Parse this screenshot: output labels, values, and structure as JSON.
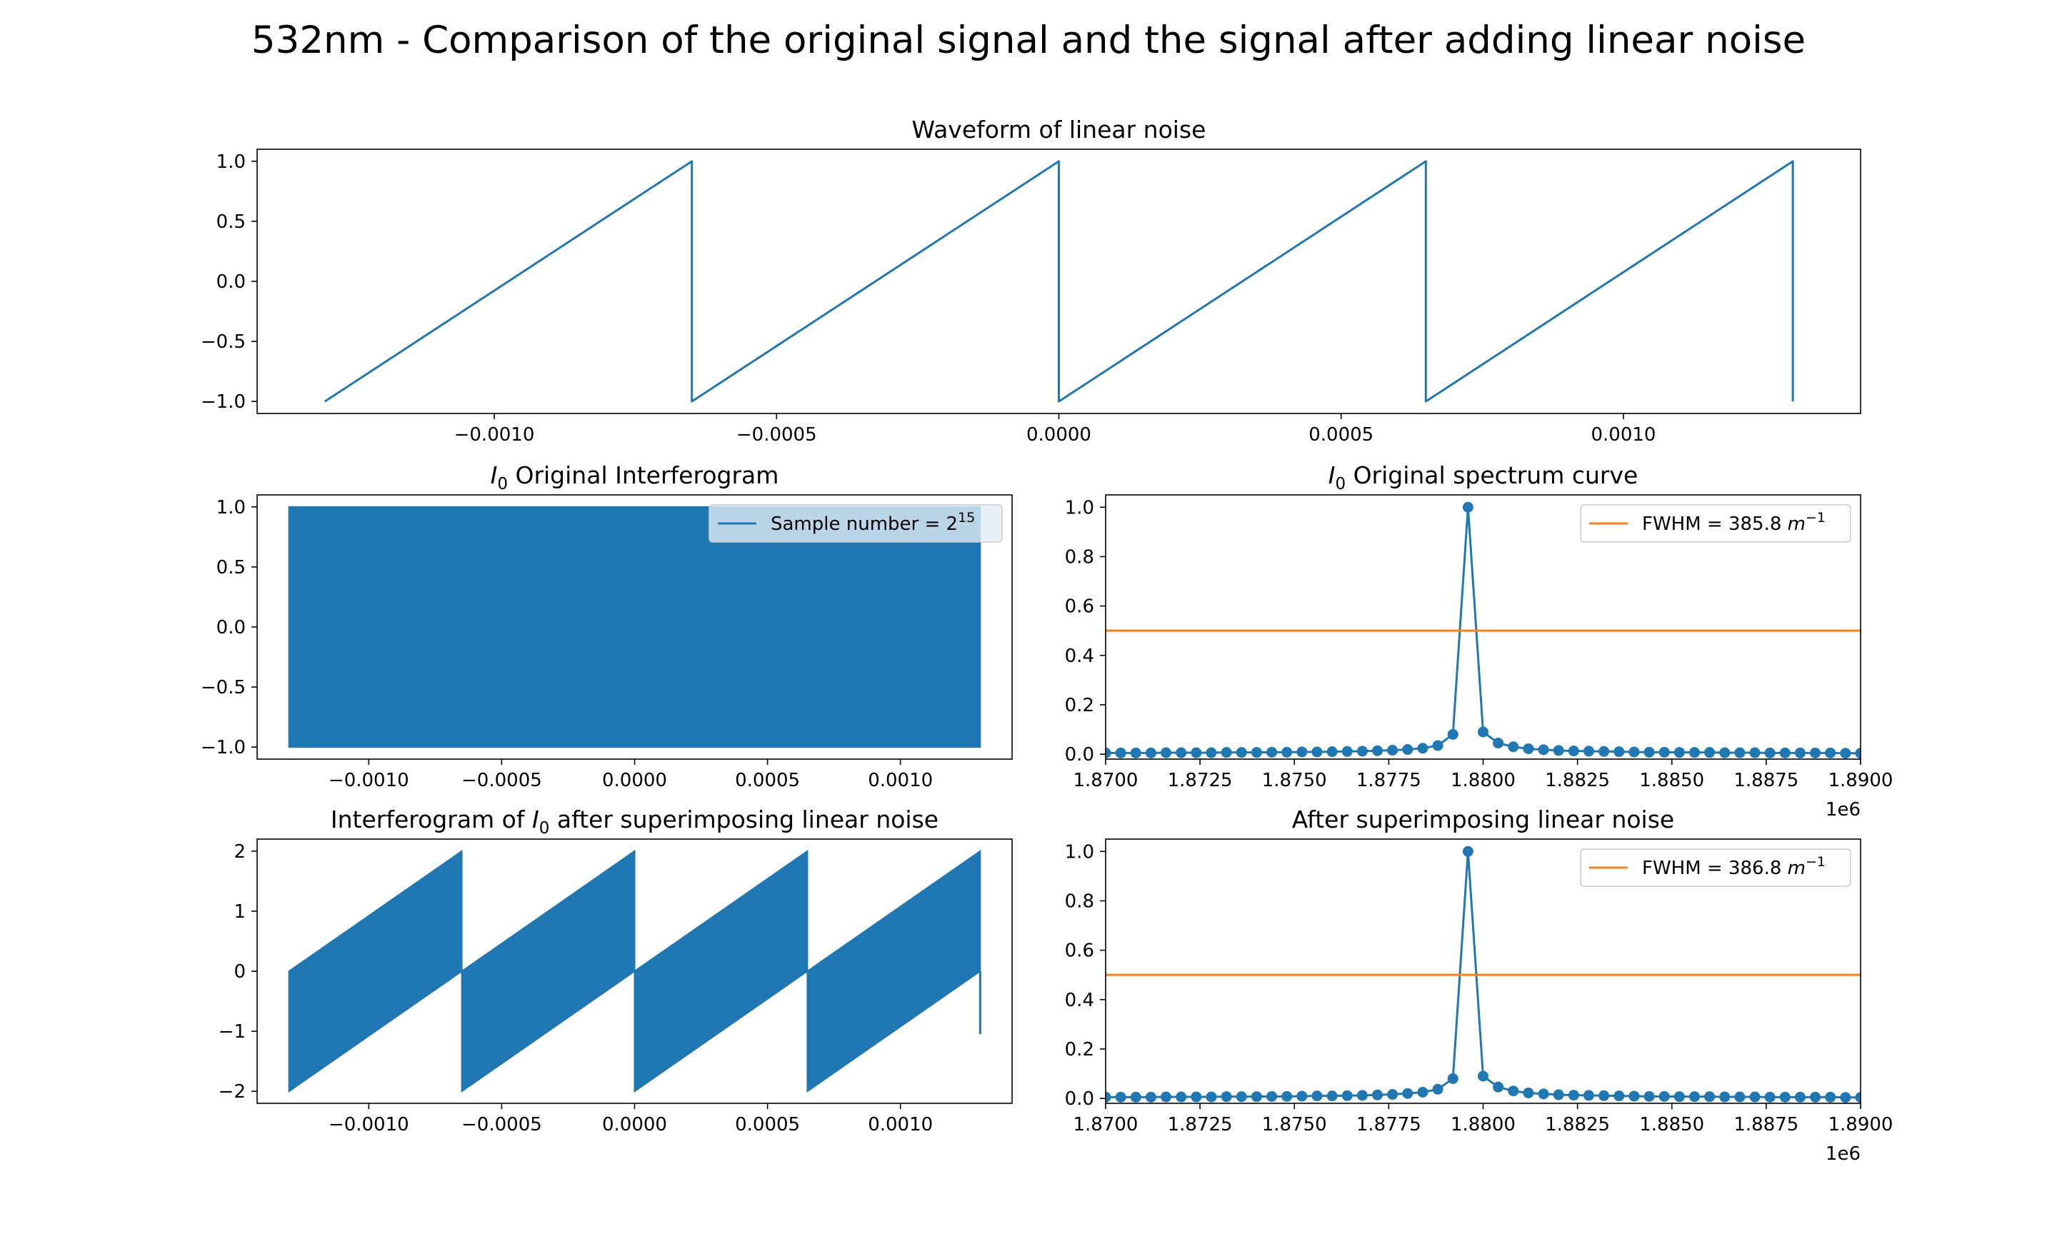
{
  "figure": {
    "suptitle": "532nm - Comparison of the original signal and the signal after adding linear noise"
  },
  "chart_data": [
    {
      "id": "noise",
      "type": "line",
      "title": "Waveform of linear noise",
      "xlabel": "",
      "ylabel": "",
      "xlim": [
        -0.00142,
        0.00142
      ],
      "ylim": [
        -1.1,
        1.1
      ],
      "xticks": [
        -0.001,
        -0.0005,
        0.0,
        0.0005,
        0.001
      ],
      "xtick_labels": [
        "−0.0010",
        "−0.0005",
        "0.0000",
        "0.0005",
        "0.0010"
      ],
      "yticks": [
        1.0,
        0.5,
        0.0,
        -0.5,
        -1.0
      ],
      "ytick_labels": [
        "1.0",
        "0.5",
        "0.0",
        "−0.5",
        "−1.0"
      ],
      "series": [
        {
          "color": "#1f77b4",
          "x": [
            -0.0013,
            -0.00065,
            -0.00065,
            0.0,
            0.0,
            0.00065,
            0.00065,
            0.0013,
            0.0013
          ],
          "y": [
            -1.0,
            1.0,
            -1.0,
            1.0,
            -1.0,
            1.0,
            -1.0,
            1.0,
            -1.0
          ]
        }
      ]
    },
    {
      "id": "orig_interf",
      "type": "area",
      "title_prefix": "I",
      "title_sub": "0",
      "title_suffix": " Original Interferogram",
      "xlabel": "",
      "ylabel": "",
      "xlim": [
        -0.00142,
        0.00142
      ],
      "ylim": [
        -1.1,
        1.1
      ],
      "xticks": [
        -0.001,
        -0.0005,
        0.0,
        0.0005,
        0.001
      ],
      "xtick_labels": [
        "−0.0010",
        "−0.0005",
        "0.0000",
        "0.0005",
        "0.0010"
      ],
      "yticks": [
        1.0,
        0.5,
        0.0,
        -0.5,
        -1.0
      ],
      "ytick_labels": [
        "1.0",
        "0.5",
        "0.0",
        "−0.5",
        "−1.0"
      ],
      "legend": {
        "label_main": "Sample number = 2",
        "label_sup": "15",
        "color": "#1f77b4",
        "placement": "upper right"
      },
      "series": [
        {
          "color": "#1f77b4",
          "band_segments": [
            {
              "x0": -0.0013,
              "x1": 0.0013,
              "lower0": -1.0,
              "upper0": 1.0,
              "lower1": -1.0,
              "upper1": 1.0
            }
          ]
        }
      ]
    },
    {
      "id": "orig_spec",
      "type": "line",
      "title_prefix": "I",
      "title_sub": "0",
      "title_suffix": " Original spectrum curve",
      "xlabel": "",
      "ylabel": "",
      "xlim": [
        1870000,
        1890000
      ],
      "ylim": [
        -0.02,
        1.05
      ],
      "x_offset_label": "1e6",
      "xticks": [
        1870000,
        1872500,
        1875000,
        1877500,
        1880000,
        1882500,
        1885000,
        1887500,
        1890000
      ],
      "xtick_labels": [
        "1.8700",
        "1.8725",
        "1.8750",
        "1.8775",
        "1.8800",
        "1.8825",
        "1.8850",
        "1.8875",
        "1.8900"
      ],
      "yticks": [
        1.0,
        0.8,
        0.6,
        0.4,
        0.2,
        0.0
      ],
      "ytick_labels": [
        "1.0",
        "0.8",
        "0.6",
        "0.4",
        "0.2",
        "0.0"
      ],
      "hline": {
        "y": 0.5,
        "color": "#ff7f0e"
      },
      "legend": {
        "label_main": "FWHM = 385.8 ",
        "label_unit": "m",
        "label_sup": "−1",
        "color": "#ff7f0e",
        "placement": "upper right"
      },
      "series": [
        {
          "color": "#1f77b4",
          "marker": "circle",
          "x": [
            1870000,
            1870400,
            1870800,
            1871200,
            1871600,
            1872000,
            1872400,
            1872800,
            1873200,
            1873600,
            1874000,
            1874400,
            1874800,
            1875200,
            1875600,
            1876000,
            1876400,
            1876800,
            1877200,
            1877600,
            1878000,
            1878400,
            1878800,
            1879200,
            1879600,
            1880000,
            1880400,
            1880800,
            1881200,
            1881600,
            1882000,
            1882400,
            1882800,
            1883200,
            1883600,
            1884000,
            1884400,
            1884800,
            1885200,
            1885600,
            1886000,
            1886400,
            1886800,
            1887200,
            1887600,
            1888000,
            1888400,
            1888800,
            1889200,
            1889600,
            1890000
          ],
          "y": [
            0.005,
            0.005,
            0.005,
            0.005,
            0.006,
            0.006,
            0.006,
            0.006,
            0.007,
            0.007,
            0.007,
            0.008,
            0.008,
            0.009,
            0.009,
            0.01,
            0.011,
            0.012,
            0.014,
            0.016,
            0.019,
            0.024,
            0.035,
            0.08,
            1.0,
            0.09,
            0.045,
            0.03,
            0.022,
            0.018,
            0.015,
            0.013,
            0.012,
            0.011,
            0.01,
            0.009,
            0.008,
            0.008,
            0.007,
            0.007,
            0.007,
            0.006,
            0.006,
            0.006,
            0.005,
            0.005,
            0.005,
            0.005,
            0.005,
            0.004,
            0.004
          ]
        }
      ]
    },
    {
      "id": "noisy_interf",
      "type": "area",
      "title_prefix": "Interferogram of ",
      "title_italic": "I",
      "title_sub": "0",
      "title_suffix": " after superimposing linear noise",
      "xlabel": "",
      "ylabel": "",
      "xlim": [
        -0.00142,
        0.00142
      ],
      "ylim": [
        -2.2,
        2.2
      ],
      "xticks": [
        -0.001,
        -0.0005,
        0.0,
        0.0005,
        0.001
      ],
      "xtick_labels": [
        "−0.0010",
        "−0.0005",
        "0.0000",
        "0.0005",
        "0.0010"
      ],
      "yticks": [
        2,
        1,
        0,
        -1,
        -2
      ],
      "ytick_labels": [
        "2",
        "1",
        "0",
        "−1",
        "−2"
      ],
      "series": [
        {
          "color": "#1f77b4",
          "band_segments": [
            {
              "x0": -0.0013,
              "x1": -0.00065,
              "lower0": -2.0,
              "upper0": 0.0,
              "lower1": 0.0,
              "upper1": 2.0
            },
            {
              "x0": -0.00065,
              "x1": 0.0,
              "lower0": -2.0,
              "upper0": 0.0,
              "lower1": 0.0,
              "upper1": 2.0
            },
            {
              "x0": 0.0,
              "x1": 0.00065,
              "lower0": -2.0,
              "upper0": 0.0,
              "lower1": 0.0,
              "upper1": 2.0
            },
            {
              "x0": 0.00065,
              "x1": 0.0013,
              "lower0": -2.0,
              "upper0": 0.0,
              "lower1": 0.0,
              "upper1": 2.0
            }
          ],
          "tail_line": {
            "x": 0.0013,
            "y0": 0.0,
            "y1": -1.05
          }
        }
      ]
    },
    {
      "id": "noisy_spec",
      "type": "line",
      "title": "After superimposing linear noise",
      "xlabel": "",
      "ylabel": "",
      "xlim": [
        1870000,
        1890000
      ],
      "ylim": [
        -0.02,
        1.05
      ],
      "x_offset_label": "1e6",
      "xticks": [
        1870000,
        1872500,
        1875000,
        1877500,
        1880000,
        1882500,
        1885000,
        1887500,
        1890000
      ],
      "xtick_labels": [
        "1.8700",
        "1.8725",
        "1.8750",
        "1.8775",
        "1.8800",
        "1.8825",
        "1.8850",
        "1.8875",
        "1.8900"
      ],
      "yticks": [
        1.0,
        0.8,
        0.6,
        0.4,
        0.2,
        0.0
      ],
      "ytick_labels": [
        "1.0",
        "0.8",
        "0.6",
        "0.4",
        "0.2",
        "0.0"
      ],
      "hline": {
        "y": 0.5,
        "color": "#ff7f0e"
      },
      "legend": {
        "label_main": "FWHM = 386.8 ",
        "label_unit": "m",
        "label_sup": "−1",
        "color": "#ff7f0e",
        "placement": "upper right"
      },
      "series": [
        {
          "color": "#1f77b4",
          "marker": "circle",
          "x": [
            1870000,
            1870400,
            1870800,
            1871200,
            1871600,
            1872000,
            1872400,
            1872800,
            1873200,
            1873600,
            1874000,
            1874400,
            1874800,
            1875200,
            1875600,
            1876000,
            1876400,
            1876800,
            1877200,
            1877600,
            1878000,
            1878400,
            1878800,
            1879200,
            1879600,
            1880000,
            1880400,
            1880800,
            1881200,
            1881600,
            1882000,
            1882400,
            1882800,
            1883200,
            1883600,
            1884000,
            1884400,
            1884800,
            1885200,
            1885600,
            1886000,
            1886400,
            1886800,
            1887200,
            1887600,
            1888000,
            1888400,
            1888800,
            1889200,
            1889600,
            1890000
          ],
          "y": [
            0.005,
            0.005,
            0.005,
            0.005,
            0.006,
            0.006,
            0.006,
            0.006,
            0.007,
            0.007,
            0.007,
            0.008,
            0.008,
            0.009,
            0.01,
            0.01,
            0.011,
            0.012,
            0.014,
            0.016,
            0.02,
            0.025,
            0.037,
            0.08,
            1.0,
            0.09,
            0.046,
            0.03,
            0.022,
            0.018,
            0.015,
            0.013,
            0.012,
            0.011,
            0.01,
            0.009,
            0.008,
            0.008,
            0.007,
            0.007,
            0.007,
            0.006,
            0.006,
            0.006,
            0.005,
            0.005,
            0.005,
            0.005,
            0.005,
            0.004,
            0.004
          ]
        }
      ]
    }
  ]
}
